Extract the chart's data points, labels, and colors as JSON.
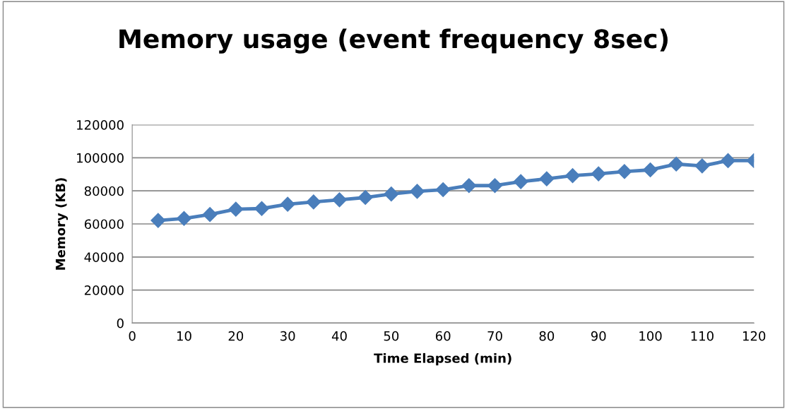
{
  "chart_data": {
    "type": "line",
    "title": "Memory usage (event frequency 8sec)",
    "xlabel": "Time Elapsed (min)",
    "ylabel": "Memory (KB)",
    "x": [
      5,
      10,
      15,
      20,
      25,
      30,
      35,
      40,
      45,
      50,
      55,
      60,
      65,
      70,
      75,
      80,
      85,
      90,
      95,
      100,
      105,
      110,
      115,
      120
    ],
    "series": [
      {
        "color": "#4a7ebb",
        "values": [
          62100,
          63300,
          65700,
          68900,
          69300,
          71900,
          73300,
          74600,
          76000,
          78100,
          79700,
          80700,
          83200,
          83200,
          85600,
          87300,
          89200,
          90300,
          91700,
          92700,
          96200,
          95100,
          98300,
          98300
        ]
      }
    ],
    "xlim": [
      0,
      120
    ],
    "xticks": [
      0,
      10,
      20,
      30,
      40,
      50,
      60,
      70,
      80,
      90,
      100,
      110,
      120
    ],
    "ylim": [
      0,
      120000
    ],
    "yticks": [
      0,
      20000,
      40000,
      60000,
      80000,
      100000,
      120000
    ],
    "grid": "y",
    "marker": "diamond",
    "line_style": "solid"
  }
}
